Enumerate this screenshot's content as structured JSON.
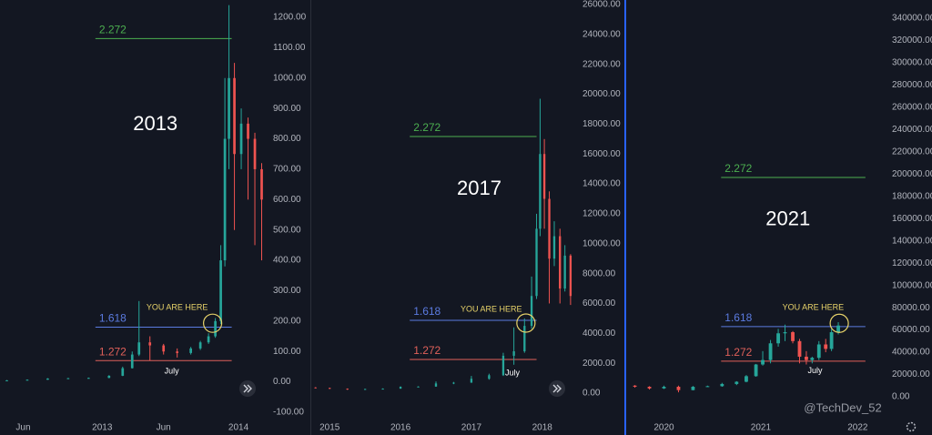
{
  "chart_data": [
    {
      "type": "candlestick",
      "up_color": "#26a69a",
      "down_color": "#ef5350",
      "xlim": [
        2012.25,
        2014.22
      ],
      "ylim": [
        -121,
        1257
      ],
      "xticks": [
        {
          "value": 2012.42,
          "label": "Jun"
        },
        {
          "value": 2013,
          "label": "2013"
        },
        {
          "value": 2013.45,
          "label": "Jun"
        },
        {
          "value": 2014,
          "label": "2014"
        }
      ],
      "yticks": [
        {
          "value": -100,
          "label": "-100.00"
        },
        {
          "value": 0,
          "label": "0.00"
        },
        {
          "value": 100,
          "label": "100.00"
        },
        {
          "value": 200,
          "label": "200.00"
        },
        {
          "value": 300,
          "label": "300.00"
        },
        {
          "value": 400,
          "label": "400.00"
        },
        {
          "value": 500,
          "label": "500.00"
        },
        {
          "value": 600,
          "label": "600.00"
        },
        {
          "value": 700,
          "label": "700.00"
        },
        {
          "value": 800,
          "label": "800.00"
        },
        {
          "value": 900,
          "label": "900.00"
        },
        {
          "value": 1000,
          "label": "1000.00"
        },
        {
          "value": 1100,
          "label": "1100.00"
        },
        {
          "value": 1200,
          "label": "1200.00"
        }
      ],
      "grid": false,
      "x": [
        2012.3,
        2012.45,
        2012.6,
        2012.75,
        2012.9,
        2013.05,
        2013.15,
        2013.22,
        2013.27,
        2013.35,
        2013.45,
        2013.55,
        2013.65,
        2013.72,
        2013.78,
        2013.83,
        2013.87,
        2013.9,
        2013.93,
        2013.97,
        2014.02,
        2014.07,
        2014.12,
        2014.17
      ],
      "open": [
        5,
        5,
        7,
        11,
        12,
        13,
        20,
        45,
        90,
        130,
        120,
        100,
        95,
        110,
        130,
        150,
        200,
        400,
        800,
        1000,
        750,
        850,
        800,
        700
      ],
      "high": [
        6,
        8,
        12,
        13,
        14,
        22,
        50,
        100,
        266,
        150,
        125,
        110,
        115,
        135,
        160,
        210,
        450,
        1000,
        1240,
        1050,
        900,
        870,
        820,
        720
      ],
      "low": [
        4,
        5,
        7,
        10,
        11,
        12,
        19,
        44,
        85,
        70,
        90,
        80,
        90,
        105,
        125,
        145,
        190,
        380,
        700,
        500,
        700,
        600,
        450,
        400
      ],
      "close": [
        5,
        7,
        11,
        12,
        13,
        20,
        45,
        90,
        130,
        120,
        100,
        95,
        110,
        130,
        150,
        200,
        400,
        800,
        1000,
        750,
        850,
        800,
        700,
        600
      ],
      "levels": [
        {
          "label": "2.272",
          "value": 1130,
          "color": "#4caf50"
        },
        {
          "label": "1.618",
          "value": 180,
          "color": "#5b7be0"
        },
        {
          "label": "1.272",
          "value": 70,
          "color": "#e0605a"
        }
      ],
      "level_xlim": [
        2012.95,
        2013.95
      ],
      "annotations": [
        {
          "text": "2013",
          "x": 2013.39,
          "y": 846,
          "style": "title"
        },
        {
          "text": "YOU ARE HERE",
          "x": 2013.55,
          "y": 244,
          "style": "note"
        },
        {
          "text": "July",
          "x": 2013.51,
          "y": 35,
          "style": "plain"
        }
      ],
      "highlight": {
        "x": 2013.81,
        "y": 193
      }
    },
    {
      "type": "candlestick",
      "up_color": "#26a69a",
      "down_color": "#ef5350",
      "xlim": [
        2014.74,
        2018.44
      ],
      "ylim": [
        -1705,
        26304
      ],
      "xticks": [
        2015,
        2016,
        2017,
        2018
      ],
      "yticks": [
        {
          "value": 0,
          "label": "0.00"
        },
        {
          "value": 2000,
          "label": "2000.00"
        },
        {
          "value": 4000,
          "label": "4000.00"
        },
        {
          "value": 6000,
          "label": "6000.00"
        },
        {
          "value": 8000,
          "label": "8000.00"
        },
        {
          "value": 10000,
          "label": "10000.00"
        },
        {
          "value": 12000,
          "label": "12000.00"
        },
        {
          "value": 14000,
          "label": "14000.00"
        },
        {
          "value": 16000,
          "label": "16000.00"
        },
        {
          "value": 18000,
          "label": "18000.00"
        },
        {
          "value": 20000,
          "label": "20000.00"
        },
        {
          "value": 22000,
          "label": "22000.00"
        },
        {
          "value": 24000,
          "label": "24000.00"
        },
        {
          "value": 26000,
          "label": "26000.00"
        }
      ],
      "grid": false,
      "x": [
        2014.8,
        2015.0,
        2015.25,
        2015.5,
        2015.75,
        2016.0,
        2016.25,
        2016.5,
        2016.75,
        2017.0,
        2017.25,
        2017.45,
        2017.6,
        2017.75,
        2017.85,
        2017.92,
        2017.97,
        2018.03,
        2018.1,
        2018.17,
        2018.25,
        2018.32,
        2018.4
      ],
      "open": [
        380,
        350,
        300,
        240,
        280,
        300,
        430,
        440,
        650,
        700,
        960,
        1200,
        2500,
        2800,
        4500,
        6500,
        11000,
        16000,
        13000,
        9000,
        10500,
        7000,
        9200
      ],
      "high": [
        400,
        360,
        310,
        290,
        320,
        450,
        460,
        780,
        750,
        1150,
        1300,
        2700,
        4400,
        5000,
        7800,
        12000,
        19700,
        17000,
        13500,
        11500,
        11000,
        9900,
        9300
      ],
      "low": [
        330,
        280,
        220,
        230,
        270,
        290,
        400,
        430,
        600,
        690,
        900,
        1150,
        1900,
        2700,
        4300,
        6300,
        10500,
        11000,
        6000,
        8500,
        6000,
        6800,
        5900
      ],
      "close": [
        350,
        300,
        240,
        280,
        300,
        430,
        440,
        650,
        700,
        960,
        1200,
        2500,
        2800,
        4500,
        6500,
        11000,
        16000,
        13000,
        9000,
        10500,
        7000,
        9200,
        6500
      ],
      "levels": [
        {
          "label": "2.272",
          "value": 17170,
          "color": "#4caf50"
        },
        {
          "label": "1.618",
          "value": 4870,
          "color": "#5b7be0"
        },
        {
          "label": "1.272",
          "value": 2250,
          "color": "#e0605a"
        }
      ],
      "level_xlim": [
        2016.13,
        2017.92
      ],
      "annotations": [
        {
          "text": "2017",
          "x": 2017.11,
          "y": 13640,
          "style": "title"
        },
        {
          "text": "YOU ARE HERE",
          "x": 2017.28,
          "y": 5600,
          "style": "note"
        },
        {
          "text": "July",
          "x": 2017.58,
          "y": 1340,
          "style": "plain"
        }
      ],
      "highlight": {
        "x": 2017.77,
        "y": 4690
      }
    },
    {
      "type": "candlestick",
      "up_color": "#26a69a",
      "down_color": "#ef5350",
      "xlim": [
        2019.61,
        2022.26
      ],
      "ylim": [
        -19616,
        356346
      ],
      "xticks": [
        2020,
        2021,
        2022
      ],
      "yticks": [
        {
          "value": 0,
          "label": "0.00"
        },
        {
          "value": 20000,
          "label": "20000.00"
        },
        {
          "value": 40000,
          "label": "40000.00"
        },
        {
          "value": 60000,
          "label": "60000.00"
        },
        {
          "value": 80000,
          "label": "80000.00"
        },
        {
          "value": 100000,
          "label": "100000.00"
        },
        {
          "value": 120000,
          "label": "120000.00"
        },
        {
          "value": 140000,
          "label": "140000.00"
        },
        {
          "value": 160000,
          "label": "160000.00"
        },
        {
          "value": 180000,
          "label": "180000.00"
        },
        {
          "value": 200000,
          "label": "200000.00"
        },
        {
          "value": 220000,
          "label": "220000.00"
        },
        {
          "value": 240000,
          "label": "240000.00"
        },
        {
          "value": 260000,
          "label": "260000.00"
        },
        {
          "value": 280000,
          "label": "280000.00"
        },
        {
          "value": 300000,
          "label": "300000.00"
        },
        {
          "value": 320000,
          "label": "320000.00"
        },
        {
          "value": 340000,
          "label": "340000.00"
        }
      ],
      "grid": false,
      "x": [
        2019.7,
        2019.85,
        2020.0,
        2020.15,
        2020.3,
        2020.45,
        2020.6,
        2020.75,
        2020.85,
        2020.95,
        2021.02,
        2021.1,
        2021.18,
        2021.25,
        2021.33,
        2021.4,
        2021.47,
        2021.53,
        2021.6,
        2021.67,
        2021.73,
        2021.8
      ],
      "open": [
        10000,
        9000,
        7500,
        9000,
        6000,
        9000,
        9500,
        11500,
        13500,
        18500,
        29000,
        33000,
        48000,
        57000,
        58000,
        50000,
        36000,
        33000,
        35000,
        47000,
        43000,
        58000
      ],
      "high": [
        10500,
        9500,
        10000,
        10000,
        9700,
        10000,
        12500,
        14000,
        19500,
        29500,
        41000,
        51000,
        61000,
        64800,
        59000,
        52000,
        41000,
        36000,
        50000,
        52000,
        61000,
        67000
      ],
      "low": [
        8200,
        6500,
        7000,
        4000,
        5800,
        8900,
        9000,
        10500,
        13000,
        18000,
        28000,
        30000,
        45000,
        50000,
        48000,
        30000,
        29000,
        30000,
        33000,
        40000,
        41000,
        56000
      ],
      "close": [
        9000,
        7500,
        9000,
        6000,
        9000,
        9500,
        11500,
        13500,
        18500,
        29000,
        33000,
        48000,
        57000,
        58000,
        50000,
        36000,
        33000,
        35000,
        47000,
        43000,
        58000,
        64000
      ],
      "levels": [
        {
          "label": "2.272",
          "value": 197000,
          "color": "#4caf50"
        },
        {
          "label": "1.618",
          "value": 63000,
          "color": "#5b7be0"
        },
        {
          "label": "1.272",
          "value": 32000,
          "color": "#e0605a"
        }
      ],
      "level_xlim": [
        2020.59,
        2022.08
      ],
      "annotations": [
        {
          "text": "2021",
          "x": 2021.28,
          "y": 159000,
          "style": "title"
        },
        {
          "text": "YOU ARE HERE",
          "x": 2021.54,
          "y": 80000,
          "style": "note"
        },
        {
          "text": "July",
          "x": 2021.56,
          "y": 23000,
          "style": "plain"
        }
      ],
      "highlight": {
        "x": 2021.81,
        "y": 66000
      }
    }
  ],
  "watermark": "@TechDev_52"
}
